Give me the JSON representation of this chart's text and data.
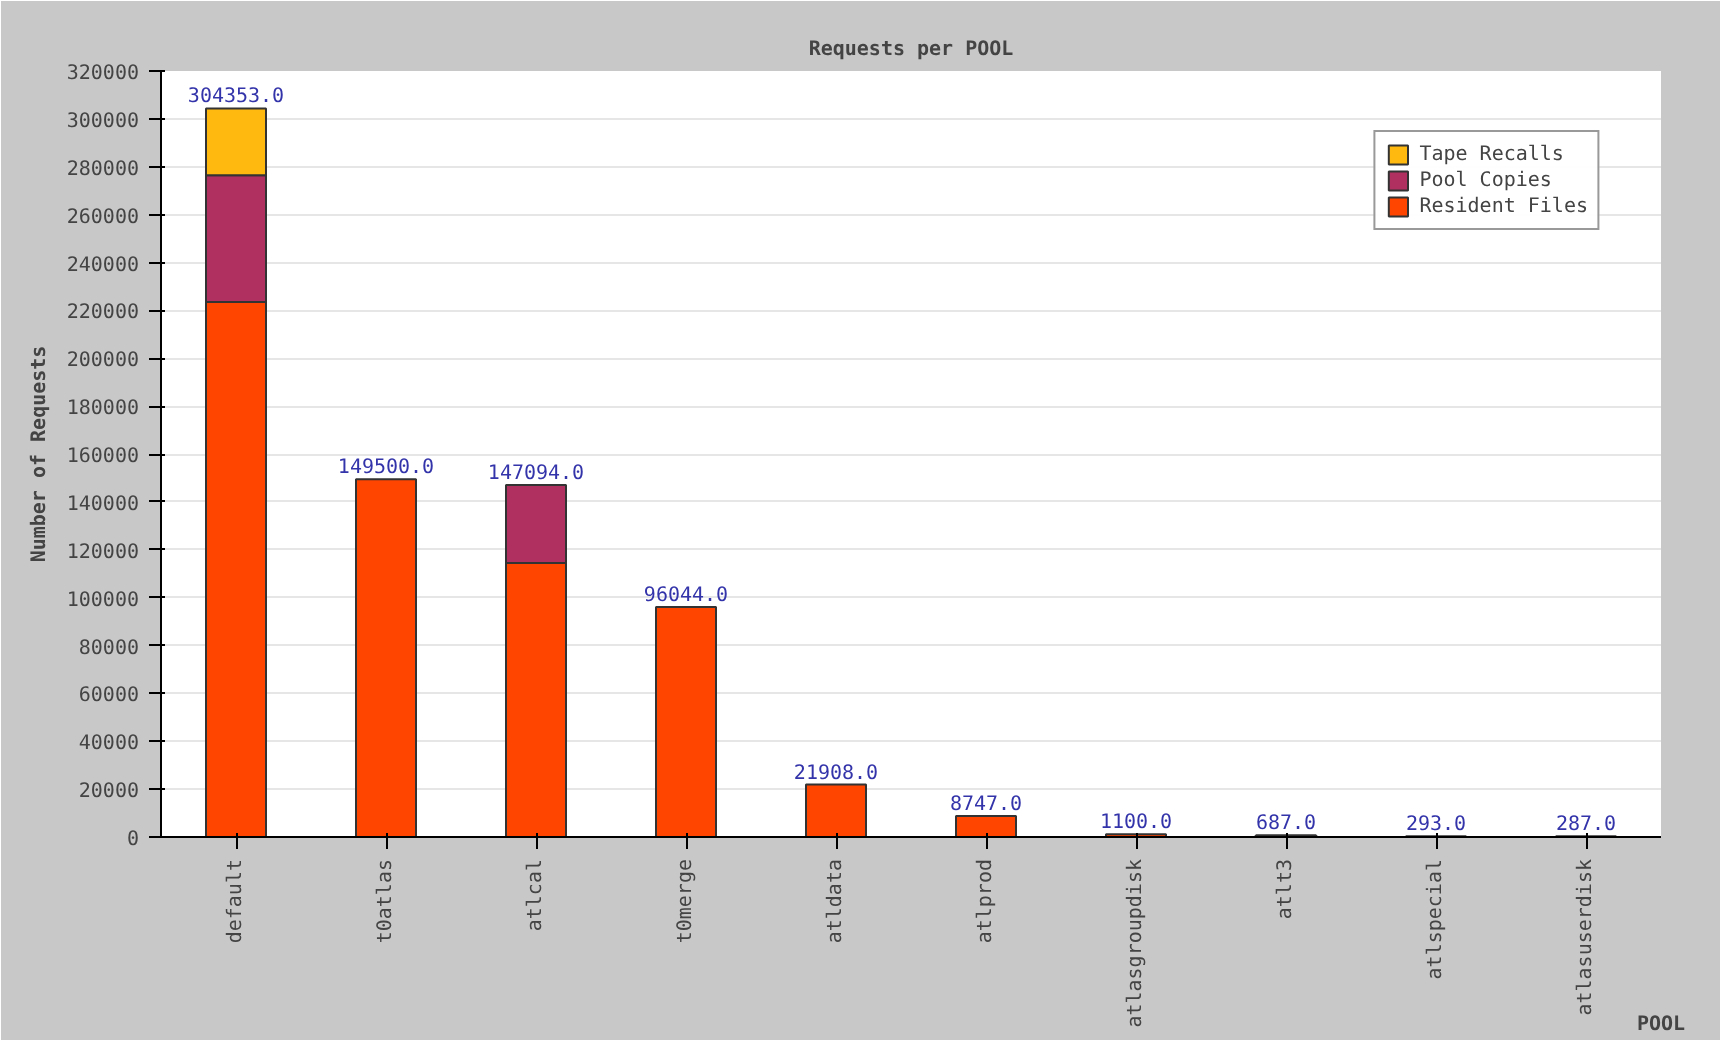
{
  "chart_data": {
    "type": "bar",
    "title": "Requests per POOL",
    "xlabel": "POOL",
    "ylabel": "Number of Requests",
    "categories": [
      "default",
      "t0atlas",
      "atlcal",
      "t0merge",
      "atldata",
      "atlprod",
      "atlasgroupdisk",
      "atlt3",
      "atlspecial",
      "atlasuserdisk"
    ],
    "stacked": true,
    "series": [
      {
        "name": "Resident Files",
        "color": "#ff4500",
        "values": [
          223500,
          149500,
          114500,
          96044,
          21908,
          8747,
          1100,
          687,
          293,
          287
        ]
      },
      {
        "name": "Pool Copies",
        "color": "#b03060",
        "values": [
          53000,
          null,
          32594,
          null,
          null,
          null,
          null,
          null,
          null,
          null
        ]
      },
      {
        "name": "Tape Recalls",
        "color": "#ffb90f",
        "values": [
          27853,
          null,
          null,
          null,
          null,
          null,
          null,
          null,
          null,
          null
        ]
      }
    ],
    "totals": [
      "304353.0",
      "149500.0",
      "147094.0",
      "96044.0",
      "21908.0",
      "8747.0",
      "1100.0",
      "687.0",
      "293.0",
      "287.0"
    ],
    "ylim": [
      0,
      320000
    ],
    "yticks": [
      0,
      20000,
      40000,
      60000,
      80000,
      100000,
      120000,
      140000,
      160000,
      180000,
      200000,
      220000,
      240000,
      260000,
      280000,
      300000,
      320000
    ],
    "grid": "y",
    "legend": "top right"
  }
}
